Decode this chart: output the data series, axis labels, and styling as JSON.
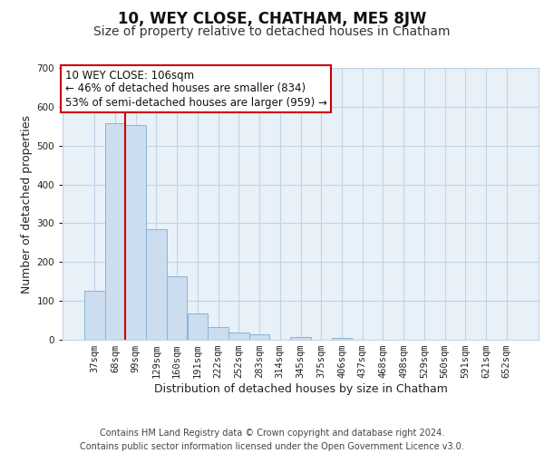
{
  "title": "10, WEY CLOSE, CHATHAM, ME5 8JW",
  "subtitle": "Size of property relative to detached houses in Chatham",
  "xlabel": "Distribution of detached houses by size in Chatham",
  "ylabel": "Number of detached properties",
  "bar_labels": [
    "37sqm",
    "68sqm",
    "99sqm",
    "129sqm",
    "160sqm",
    "191sqm",
    "222sqm",
    "252sqm",
    "283sqm",
    "314sqm",
    "345sqm",
    "375sqm",
    "406sqm",
    "437sqm",
    "468sqm",
    "498sqm",
    "529sqm",
    "560sqm",
    "591sqm",
    "621sqm",
    "652sqm"
  ],
  "bar_values": [
    125,
    558,
    553,
    285,
    163,
    68,
    33,
    19,
    14,
    0,
    8,
    0,
    5,
    0,
    0,
    0,
    0,
    0,
    0,
    0,
    0
  ],
  "bar_color": "#ccddf0",
  "bar_edge_color": "#8ab4d4",
  "vline_color": "#cc0000",
  "annotation_text": "10 WEY CLOSE: 106sqm\n← 46% of detached houses are smaller (834)\n53% of semi-detached houses are larger (959) →",
  "annotation_box_color": "#ffffff",
  "annotation_box_edge": "#cc0000",
  "ylim": [
    0,
    700
  ],
  "yticks": [
    0,
    100,
    200,
    300,
    400,
    500,
    600,
    700
  ],
  "footer_line1": "Contains HM Land Registry data © Crown copyright and database right 2024.",
  "footer_line2": "Contains public sector information licensed under the Open Government Licence v3.0.",
  "title_fontsize": 12,
  "subtitle_fontsize": 10,
  "axis_label_fontsize": 9,
  "tick_fontsize": 7.5,
  "annotation_fontsize": 8.5,
  "footer_fontsize": 7,
  "background_color": "#ffffff",
  "grid_color": "#c0d4e8",
  "plot_bg_color": "#e8f0f8"
}
